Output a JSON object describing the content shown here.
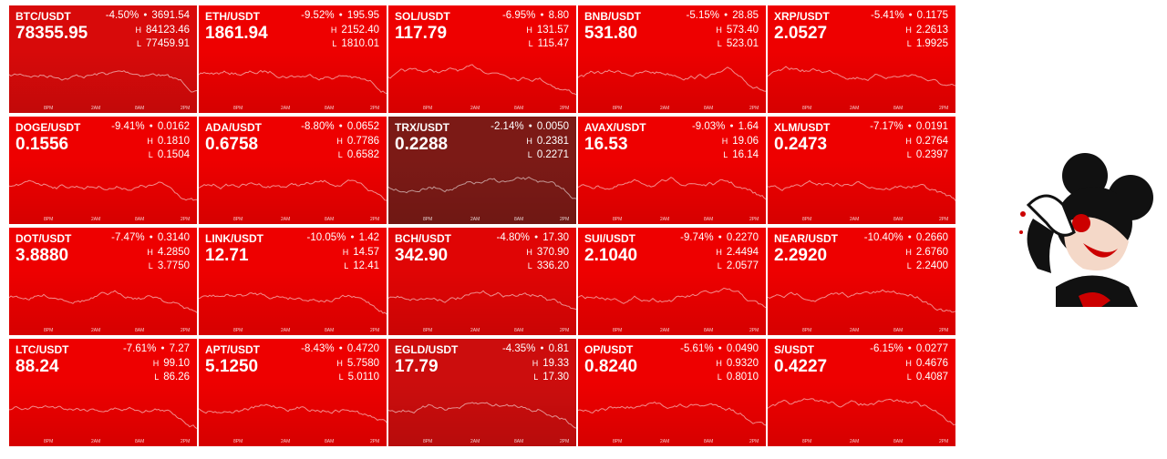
{
  "time_labels": [
    "8PM",
    "2AM",
    "8AM",
    "2PM"
  ],
  "high_label": "H",
  "low_label": "L",
  "tiles": [
    {
      "pair": "BTC/USDT",
      "change": "-4.50%",
      "delta": "3691.54",
      "price": "78355.95",
      "high": "84123.46",
      "low": "77459.91",
      "color": "#d80a0a"
    },
    {
      "pair": "ETH/USDT",
      "change": "-9.52%",
      "delta": "195.95",
      "price": "1861.94",
      "high": "2152.40",
      "low": "1810.01",
      "color": "#ee0000"
    },
    {
      "pair": "SOL/USDT",
      "change": "-6.95%",
      "delta": "8.80",
      "price": "117.79",
      "high": "131.57",
      "low": "115.47",
      "color": "#ee0000"
    },
    {
      "pair": "BNB/USDT",
      "change": "-5.15%",
      "delta": "28.85",
      "price": "531.80",
      "high": "573.40",
      "low": "523.01",
      "color": "#ee0000"
    },
    {
      "pair": "XRP/USDT",
      "change": "-5.41%",
      "delta": "0.1175",
      "price": "2.0527",
      "high": "2.2613",
      "low": "1.9925",
      "color": "#ee0000"
    },
    {
      "pair": "DOGE/USDT",
      "change": "-9.41%",
      "delta": "0.0162",
      "price": "0.1556",
      "high": "0.1810",
      "low": "0.1504",
      "color": "#ee0000"
    },
    {
      "pair": "ADA/USDT",
      "change": "-8.80%",
      "delta": "0.0652",
      "price": "0.6758",
      "high": "0.7786",
      "low": "0.6582",
      "color": "#ee0000"
    },
    {
      "pair": "TRX/USDT",
      "change": "-2.14%",
      "delta": "0.0050",
      "price": "0.2288",
      "high": "0.2381",
      "low": "0.2271",
      "color": "#7c1a16"
    },
    {
      "pair": "AVAX/USDT",
      "change": "-9.03%",
      "delta": "1.64",
      "price": "16.53",
      "high": "19.06",
      "low": "16.14",
      "color": "#ee0000"
    },
    {
      "pair": "XLM/USDT",
      "change": "-7.17%",
      "delta": "0.0191",
      "price": "0.2473",
      "high": "0.2764",
      "low": "0.2397",
      "color": "#ee0000"
    },
    {
      "pair": "DOT/USDT",
      "change": "-7.47%",
      "delta": "0.3140",
      "price": "3.8880",
      "high": "4.2850",
      "low": "3.7750",
      "color": "#ee0000"
    },
    {
      "pair": "LINK/USDT",
      "change": "-10.05%",
      "delta": "1.42",
      "price": "12.71",
      "high": "14.57",
      "low": "12.41",
      "color": "#ee0000"
    },
    {
      "pair": "BCH/USDT",
      "change": "-4.80%",
      "delta": "17.30",
      "price": "342.90",
      "high": "370.90",
      "low": "336.20",
      "color": "#e00505"
    },
    {
      "pair": "SUI/USDT",
      "change": "-9.74%",
      "delta": "0.2270",
      "price": "2.1040",
      "high": "2.4494",
      "low": "2.0577",
      "color": "#ee0000"
    },
    {
      "pair": "NEAR/USDT",
      "change": "-10.40%",
      "delta": "0.2660",
      "price": "2.2920",
      "high": "2.6760",
      "low": "2.2400",
      "color": "#ee0000"
    },
    {
      "pair": "LTC/USDT",
      "change": "-7.61%",
      "delta": "7.27",
      "price": "88.24",
      "high": "99.10",
      "low": "86.26",
      "color": "#ee0000"
    },
    {
      "pair": "APT/USDT",
      "change": "-8.43%",
      "delta": "0.4720",
      "price": "5.1250",
      "high": "5.7580",
      "low": "5.0110",
      "color": "#ee0000"
    },
    {
      "pair": "EGLD/USDT",
      "change": "-4.35%",
      "delta": "0.81",
      "price": "17.79",
      "high": "19.33",
      "low": "17.30",
      "color": "#cc0d0d"
    },
    {
      "pair": "OP/USDT",
      "change": "-5.61%",
      "delta": "0.0490",
      "price": "0.8240",
      "high": "0.9320",
      "low": "0.8010",
      "color": "#ee0000"
    },
    {
      "pair": "S/USDT",
      "change": "-6.15%",
      "delta": "0.0277",
      "price": "0.4227",
      "high": "0.4676",
      "low": "0.4087",
      "color": "#ee0000"
    }
  ]
}
